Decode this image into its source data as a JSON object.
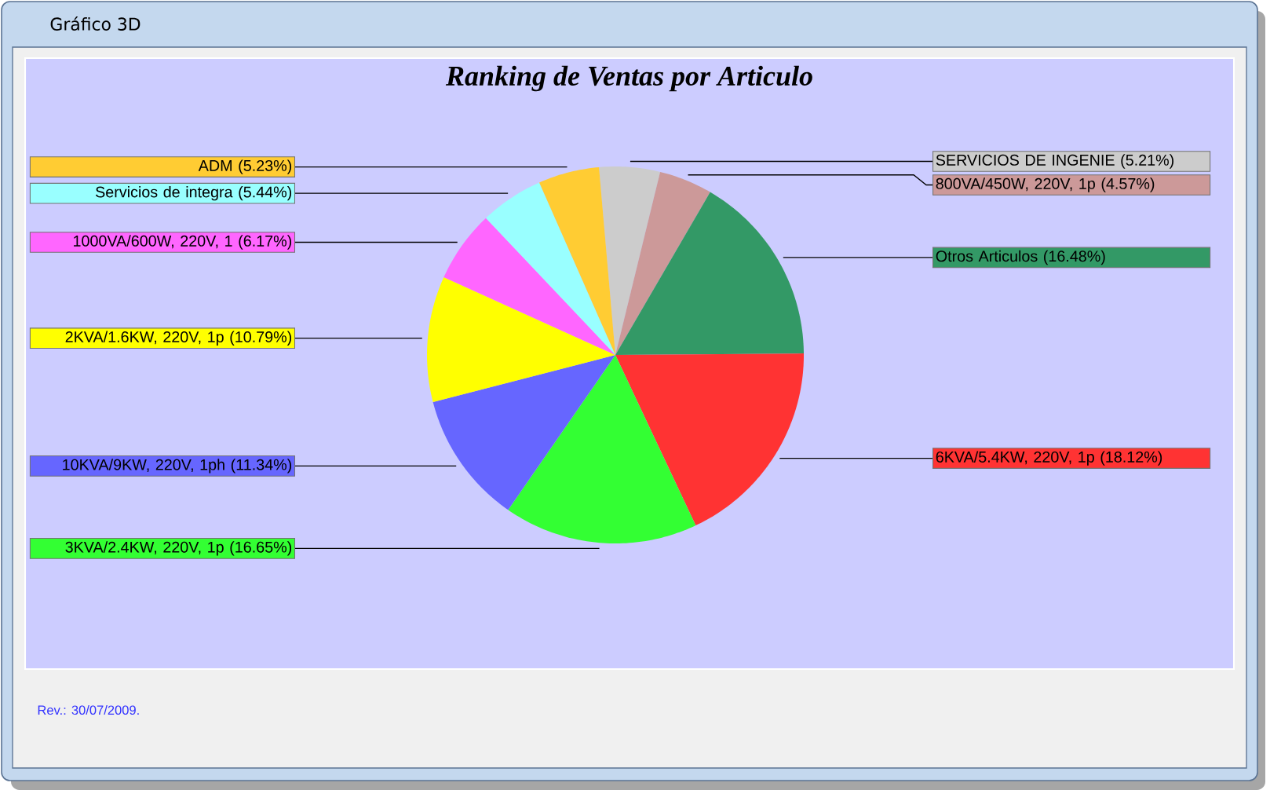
{
  "chart_data": {
    "type": "pie",
    "title": "Ranking de Ventas por Articulo",
    "categories": [
      "SERVICIOS DE INGENIE",
      "800VA/450W, 220V, 1p",
      "Otros Articulos",
      "6KVA/5.4KW, 220V, 1p",
      "3KVA/2.4KW, 220V, 1p",
      "10KVA/9KW, 220V, 1ph",
      "2KVA/1.6KW, 220V, 1p",
      "1000VA/600W, 220V, 1",
      "Servicios de integra",
      "ADM"
    ],
    "values": [
      5.21,
      4.57,
      16.48,
      18.12,
      16.65,
      11.34,
      10.79,
      6.17,
      5.44,
      5.23
    ],
    "value_labels": [
      "(5.21%)",
      "(4.57%)",
      "(16.48%)",
      "(18.12%)",
      "(16.65%)",
      "(11.34%)",
      "(10.79%)",
      "(6.17%)",
      "(5.44%)",
      "(5.23%)"
    ],
    "colors": [
      "#cccccc",
      "#cc9999",
      "#339966",
      "#ff3333",
      "#33ff33",
      "#6666ff",
      "#ffff00",
      "#ff66ff",
      "#99ffff",
      "#ffcc33"
    ],
    "annotations": [
      "Gráfico 3D",
      "Rev.: 30/07/2009."
    ]
  }
}
